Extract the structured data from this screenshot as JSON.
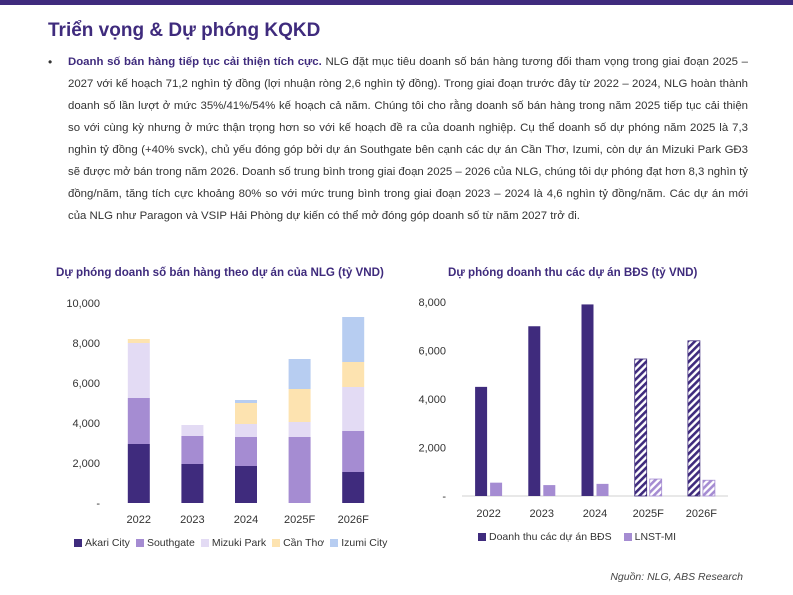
{
  "header": {
    "title": "Triển vọng & Dự phóng KQKD",
    "bar_color": "#3f2b7d"
  },
  "paragraph": {
    "bullet": "•",
    "lead": "Doanh số bán hàng tiếp tục cải thiện tích cực.",
    "body": " NLG đặt mục tiêu doanh số bán hàng tương đối tham vọng trong giai đoạn 2025 – 2027 với kế hoạch 71,2 nghìn tỷ đồng (lợi nhuận ròng 2,6 nghìn tỷ đồng). Trong giai đoạn trước đây từ 2022 – 2024, NLG hoàn thành doanh số lần lượt ở mức 35%/41%/54% kế hoạch cả năm. Chúng tôi cho rằng doanh số bán hàng trong năm 2025 tiếp tục cải thiện so với cùng kỳ nhưng ở mức thận trọng hơn so với kế hoạch đề ra của doanh nghiệp. Cụ thể doanh số dự phóng năm 2025 là 7,3 nghìn tỷ đồng (+40% svck), chủ yếu đóng góp bởi dự án Southgate bên cạnh các dự án Cần Thơ, Izumi, còn dự án Mizuki Park GĐ3 sẽ được mở bán trong năm 2026. Doanh số trung bình trong giai đoạn 2025 – 2026 của NLG, chúng tôi dự phóng đạt hơn 8,3 nghìn tỷ đồng/năm, tăng tích cực khoảng 80% so với mức trung bình trong giai đoạn 2023 – 2024 là 4,6 nghìn tỷ đồng/năm. Các dự án mới của NLG như Paragon và VSIP Hải Phòng dự kiến có thể mở đóng góp doanh số từ năm 2027 trở đi."
  },
  "chart_data": [
    {
      "type": "bar",
      "stacked": true,
      "title": "Dự phóng doanh số bán hàng theo dự án của NLG (tỷ VND)",
      "categories": [
        "2022",
        "2023",
        "2024",
        "2025F",
        "2026F"
      ],
      "ylim": [
        0,
        10000
      ],
      "yticks": [
        0,
        2000,
        4000,
        6000,
        8000,
        10000
      ],
      "ytick_labels": [
        "-",
        "2,000",
        "4,000",
        "6,000",
        "8,000",
        "10,000"
      ],
      "grid": false,
      "legend_position": "bottom",
      "series": [
        {
          "name": "Akari City",
          "color": "#3f2b7d",
          "values": [
            2950,
            1950,
            1850,
            0,
            1550
          ]
        },
        {
          "name": "Southgate",
          "color": "#a58cd2",
          "values": [
            2300,
            1400,
            1450,
            3300,
            2050
          ]
        },
        {
          "name": "Mizuki Park",
          "color": "#e3dbf4",
          "values": [
            2750,
            550,
            650,
            750,
            2200
          ]
        },
        {
          "name": "Cần Thơ",
          "color": "#fde3b0",
          "values": [
            200,
            0,
            1050,
            1650,
            1250
          ]
        },
        {
          "name": "Izumi City",
          "color": "#b7cdf1",
          "values": [
            0,
            0,
            150,
            1500,
            2250
          ]
        }
      ]
    },
    {
      "type": "bar",
      "title": "Dự phóng doanh thu các dự án BĐS (tỷ VND)",
      "categories": [
        "2022",
        "2023",
        "2024",
        "2025F",
        "2026F"
      ],
      "forecast_categories": [
        "2025F",
        "2026F"
      ],
      "ylim": [
        0,
        8000
      ],
      "yticks": [
        0,
        2000,
        4000,
        6000,
        8000
      ],
      "ytick_labels": [
        "-",
        "2,000",
        "4,000",
        "6,000",
        "8,000"
      ],
      "grid": false,
      "legend_position": "bottom",
      "series": [
        {
          "name": "Doanh thu các dự án BĐS",
          "color": "#3f2b7d",
          "values": [
            4500,
            7000,
            7900,
            5650,
            6400
          ]
        },
        {
          "name": "LNST-MI",
          "color": "#a58cd2",
          "values": [
            550,
            450,
            500,
            700,
            650
          ]
        }
      ]
    }
  ],
  "source": "Nguồn: NLG, ABS Research"
}
